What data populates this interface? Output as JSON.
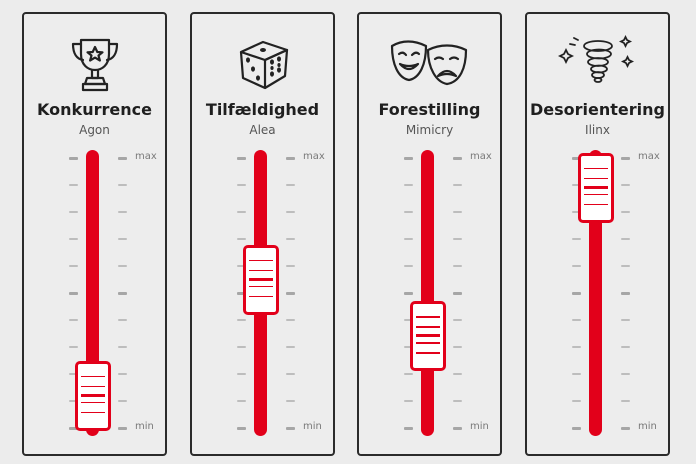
{
  "scale": {
    "max_label": "max",
    "min_label": "min"
  },
  "panels": [
    {
      "title": "Konkurrence",
      "subtitle": "Agon",
      "icon": "trophy-icon",
      "level": 0.12
    },
    {
      "title": "Tilfældighed",
      "subtitle": "Alea",
      "icon": "dice-icon",
      "level": 0.55
    },
    {
      "title": "Forestilling",
      "subtitle": "Mimicry",
      "icon": "theater-masks-icon",
      "level": 0.34
    },
    {
      "title": "Desorientering",
      "subtitle": "Ilinx",
      "icon": "vertigo-spiral-icon",
      "level": 0.89
    }
  ],
  "colors": {
    "accent": "#e2001a",
    "border": "#2b2b2b",
    "background": "#ededed"
  }
}
